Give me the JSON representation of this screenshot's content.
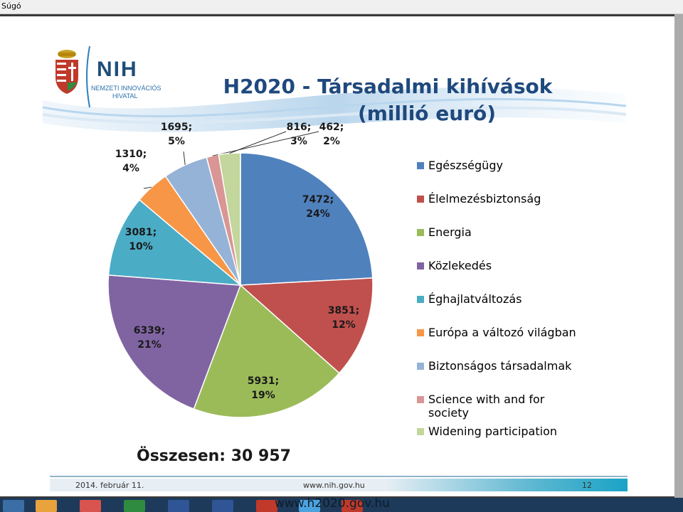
{
  "menu": {
    "help_label": "Súgó"
  },
  "logo": {
    "acronym": "NIH",
    "line1": "NEMZETI INNOVÁCIÓS",
    "line2": "HIVATAL"
  },
  "slide": {
    "title_line1": "H2020 - Társadalmi kihívások",
    "title_line2": "(millió euró)",
    "total": "Összesen: 30 957",
    "footer_date": "2014. február 11.",
    "footer_url": "www.nih.gov.hu",
    "page_number": "12"
  },
  "overlay_url": "www.h2020.gov.hu",
  "chart_data": {
    "type": "pie",
    "title": "H2020 - Társadalmi kihívások (millió euró)",
    "legend_position": "right",
    "categories": [
      "Egészségügy",
      "Élelmezésbiztonság",
      "Energia",
      "Közlekedés",
      "Éghajlatváltozás",
      "Európa a változó világban",
      "Biztonságos társadalmak",
      "Science with and for society",
      "Widening participation"
    ],
    "values": [
      7472,
      3851,
      5931,
      6339,
      3081,
      1310,
      1695,
      462,
      816
    ],
    "labels": [
      [
        "7472;",
        "24%"
      ],
      [
        "3851;",
        "12%"
      ],
      [
        "5931;",
        "19%"
      ],
      [
        "6339;",
        "21%"
      ],
      [
        "3081;",
        "10%"
      ],
      [
        "1310;",
        "4%"
      ],
      [
        "1695;",
        "5%"
      ],
      [
        "462;",
        "2%"
      ],
      [
        "816;",
        "3%"
      ]
    ],
    "colors": [
      "#4f81bd",
      "#c0504d",
      "#9bbb59",
      "#8064a2",
      "#4bacc6",
      "#f79646",
      "#95b3d7",
      "#d99694",
      "#c3d69b"
    ]
  },
  "taskbar_colors": [
    "#3b6ea5",
    "#e8a33d",
    "#d9534f",
    "#2e8b3f",
    "#2f5597",
    "#2f5597",
    "#c0392b",
    "#4aa3df",
    "#c0392b"
  ]
}
